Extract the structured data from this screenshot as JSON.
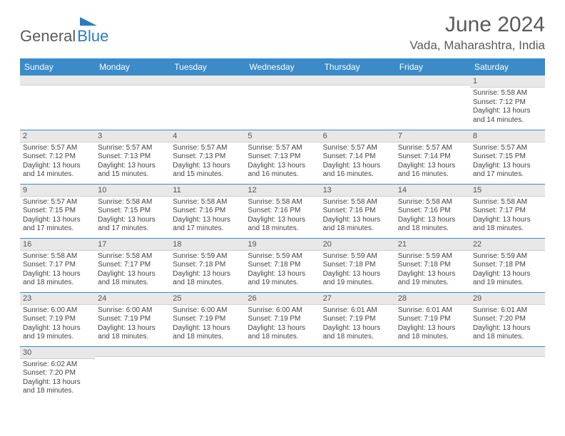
{
  "logo": {
    "part1": "General",
    "part2": "Blue"
  },
  "title": "June 2024",
  "location": "Vada, Maharashtra, India",
  "colors": {
    "header_bg": "#3b8bc9",
    "header_text": "#ffffff",
    "daynum_bg": "#e8e8e8",
    "cell_border": "#3b8bc9",
    "title_color": "#5a5a5a",
    "logo_gray": "#5a5a5a",
    "logo_blue": "#2b7bbf",
    "text_color": "#444444"
  },
  "typography": {
    "title_fontsize": 30,
    "location_fontsize": 17,
    "dayheader_fontsize": 12,
    "daynum_fontsize": 11,
    "body_fontsize": 10
  },
  "day_headers": [
    "Sunday",
    "Monday",
    "Tuesday",
    "Wednesday",
    "Thursday",
    "Friday",
    "Saturday"
  ],
  "weeks": [
    [
      {
        "n": "",
        "l1": "",
        "l2": "",
        "l3": "",
        "l4": ""
      },
      {
        "n": "",
        "l1": "",
        "l2": "",
        "l3": "",
        "l4": ""
      },
      {
        "n": "",
        "l1": "",
        "l2": "",
        "l3": "",
        "l4": ""
      },
      {
        "n": "",
        "l1": "",
        "l2": "",
        "l3": "",
        "l4": ""
      },
      {
        "n": "",
        "l1": "",
        "l2": "",
        "l3": "",
        "l4": ""
      },
      {
        "n": "",
        "l1": "",
        "l2": "",
        "l3": "",
        "l4": ""
      },
      {
        "n": "1",
        "l1": "Sunrise: 5:58 AM",
        "l2": "Sunset: 7:12 PM",
        "l3": "Daylight: 13 hours",
        "l4": "and 14 minutes."
      }
    ],
    [
      {
        "n": "2",
        "l1": "Sunrise: 5:57 AM",
        "l2": "Sunset: 7:12 PM",
        "l3": "Daylight: 13 hours",
        "l4": "and 14 minutes."
      },
      {
        "n": "3",
        "l1": "Sunrise: 5:57 AM",
        "l2": "Sunset: 7:13 PM",
        "l3": "Daylight: 13 hours",
        "l4": "and 15 minutes."
      },
      {
        "n": "4",
        "l1": "Sunrise: 5:57 AM",
        "l2": "Sunset: 7:13 PM",
        "l3": "Daylight: 13 hours",
        "l4": "and 15 minutes."
      },
      {
        "n": "5",
        "l1": "Sunrise: 5:57 AM",
        "l2": "Sunset: 7:13 PM",
        "l3": "Daylight: 13 hours",
        "l4": "and 16 minutes."
      },
      {
        "n": "6",
        "l1": "Sunrise: 5:57 AM",
        "l2": "Sunset: 7:14 PM",
        "l3": "Daylight: 13 hours",
        "l4": "and 16 minutes."
      },
      {
        "n": "7",
        "l1": "Sunrise: 5:57 AM",
        "l2": "Sunset: 7:14 PM",
        "l3": "Daylight: 13 hours",
        "l4": "and 16 minutes."
      },
      {
        "n": "8",
        "l1": "Sunrise: 5:57 AM",
        "l2": "Sunset: 7:15 PM",
        "l3": "Daylight: 13 hours",
        "l4": "and 17 minutes."
      }
    ],
    [
      {
        "n": "9",
        "l1": "Sunrise: 5:57 AM",
        "l2": "Sunset: 7:15 PM",
        "l3": "Daylight: 13 hours",
        "l4": "and 17 minutes."
      },
      {
        "n": "10",
        "l1": "Sunrise: 5:58 AM",
        "l2": "Sunset: 7:15 PM",
        "l3": "Daylight: 13 hours",
        "l4": "and 17 minutes."
      },
      {
        "n": "11",
        "l1": "Sunrise: 5:58 AM",
        "l2": "Sunset: 7:16 PM",
        "l3": "Daylight: 13 hours",
        "l4": "and 17 minutes."
      },
      {
        "n": "12",
        "l1": "Sunrise: 5:58 AM",
        "l2": "Sunset: 7:16 PM",
        "l3": "Daylight: 13 hours",
        "l4": "and 18 minutes."
      },
      {
        "n": "13",
        "l1": "Sunrise: 5:58 AM",
        "l2": "Sunset: 7:16 PM",
        "l3": "Daylight: 13 hours",
        "l4": "and 18 minutes."
      },
      {
        "n": "14",
        "l1": "Sunrise: 5:58 AM",
        "l2": "Sunset: 7:16 PM",
        "l3": "Daylight: 13 hours",
        "l4": "and 18 minutes."
      },
      {
        "n": "15",
        "l1": "Sunrise: 5:58 AM",
        "l2": "Sunset: 7:17 PM",
        "l3": "Daylight: 13 hours",
        "l4": "and 18 minutes."
      }
    ],
    [
      {
        "n": "16",
        "l1": "Sunrise: 5:58 AM",
        "l2": "Sunset: 7:17 PM",
        "l3": "Daylight: 13 hours",
        "l4": "and 18 minutes."
      },
      {
        "n": "17",
        "l1": "Sunrise: 5:58 AM",
        "l2": "Sunset: 7:17 PM",
        "l3": "Daylight: 13 hours",
        "l4": "and 18 minutes."
      },
      {
        "n": "18",
        "l1": "Sunrise: 5:59 AM",
        "l2": "Sunset: 7:18 PM",
        "l3": "Daylight: 13 hours",
        "l4": "and 18 minutes."
      },
      {
        "n": "19",
        "l1": "Sunrise: 5:59 AM",
        "l2": "Sunset: 7:18 PM",
        "l3": "Daylight: 13 hours",
        "l4": "and 19 minutes."
      },
      {
        "n": "20",
        "l1": "Sunrise: 5:59 AM",
        "l2": "Sunset: 7:18 PM",
        "l3": "Daylight: 13 hours",
        "l4": "and 19 minutes."
      },
      {
        "n": "21",
        "l1": "Sunrise: 5:59 AM",
        "l2": "Sunset: 7:18 PM",
        "l3": "Daylight: 13 hours",
        "l4": "and 19 minutes."
      },
      {
        "n": "22",
        "l1": "Sunrise: 5:59 AM",
        "l2": "Sunset: 7:18 PM",
        "l3": "Daylight: 13 hours",
        "l4": "and 19 minutes."
      }
    ],
    [
      {
        "n": "23",
        "l1": "Sunrise: 6:00 AM",
        "l2": "Sunset: 7:19 PM",
        "l3": "Daylight: 13 hours",
        "l4": "and 19 minutes."
      },
      {
        "n": "24",
        "l1": "Sunrise: 6:00 AM",
        "l2": "Sunset: 7:19 PM",
        "l3": "Daylight: 13 hours",
        "l4": "and 18 minutes."
      },
      {
        "n": "25",
        "l1": "Sunrise: 6:00 AM",
        "l2": "Sunset: 7:19 PM",
        "l3": "Daylight: 13 hours",
        "l4": "and 18 minutes."
      },
      {
        "n": "26",
        "l1": "Sunrise: 6:00 AM",
        "l2": "Sunset: 7:19 PM",
        "l3": "Daylight: 13 hours",
        "l4": "and 18 minutes."
      },
      {
        "n": "27",
        "l1": "Sunrise: 6:01 AM",
        "l2": "Sunset: 7:19 PM",
        "l3": "Daylight: 13 hours",
        "l4": "and 18 minutes."
      },
      {
        "n": "28",
        "l1": "Sunrise: 6:01 AM",
        "l2": "Sunset: 7:19 PM",
        "l3": "Daylight: 13 hours",
        "l4": "and 18 minutes."
      },
      {
        "n": "29",
        "l1": "Sunrise: 6:01 AM",
        "l2": "Sunset: 7:20 PM",
        "l3": "Daylight: 13 hours",
        "l4": "and 18 minutes."
      }
    ],
    [
      {
        "n": "30",
        "l1": "Sunrise: 6:02 AM",
        "l2": "Sunset: 7:20 PM",
        "l3": "Daylight: 13 hours",
        "l4": "and 18 minutes."
      },
      {
        "n": "",
        "l1": "",
        "l2": "",
        "l3": "",
        "l4": ""
      },
      {
        "n": "",
        "l1": "",
        "l2": "",
        "l3": "",
        "l4": ""
      },
      {
        "n": "",
        "l1": "",
        "l2": "",
        "l3": "",
        "l4": ""
      },
      {
        "n": "",
        "l1": "",
        "l2": "",
        "l3": "",
        "l4": ""
      },
      {
        "n": "",
        "l1": "",
        "l2": "",
        "l3": "",
        "l4": ""
      },
      {
        "n": "",
        "l1": "",
        "l2": "",
        "l3": "",
        "l4": ""
      }
    ]
  ]
}
